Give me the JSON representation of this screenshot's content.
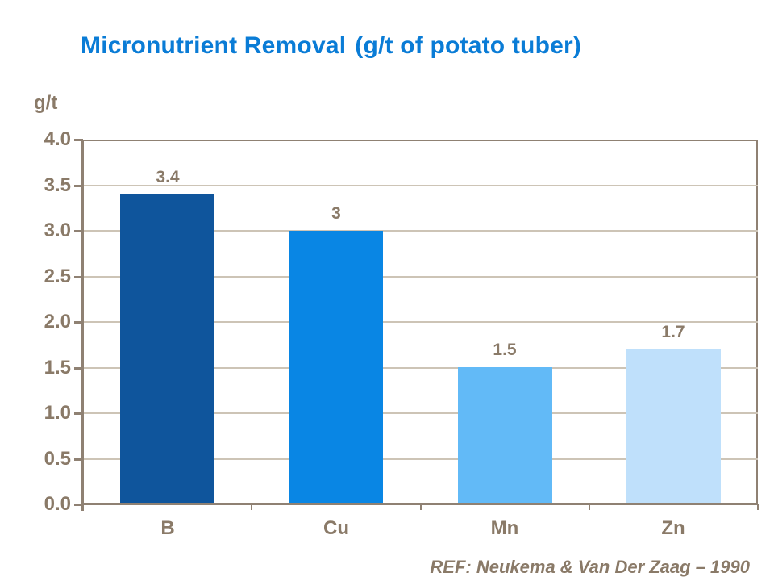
{
  "slide": {
    "title_main": "Micronutrient Removal",
    "title_suffix": "(g/t of potato tuber)",
    "reference": "REF: Neukema & Van Der Zaag – 1990"
  },
  "chart_data": {
    "type": "bar",
    "title": "Micronutrient Removal (g/t of potato tuber)",
    "unit_label": "g/t",
    "categories": [
      "B",
      "Cu",
      "Mn",
      "Zn"
    ],
    "values": [
      3.4,
      3,
      1.5,
      1.7
    ],
    "value_labels": [
      "3.4",
      "3",
      "1.5",
      "1.7"
    ],
    "bar_colors": [
      "#0F559C",
      "#0986E4",
      "#62BAF7",
      "#BFE0FB"
    ],
    "ylim": [
      0,
      4
    ],
    "ytick_step": 0.5,
    "ytick_labels": [
      "4.0",
      "3.5",
      "3.0",
      "2.5",
      "2.0",
      "1.5",
      "1.0",
      "0.5",
      "0.0"
    ],
    "grid": true,
    "legend": false,
    "annotation": "REF: Neukema & Van Der Zaag – 1990"
  },
  "colors": {
    "background": "#FFFFFF",
    "title": "#0A7CD6",
    "axis": "#8F8173",
    "gridline": "#CDC4B6",
    "label_text": "#8A7A68"
  }
}
